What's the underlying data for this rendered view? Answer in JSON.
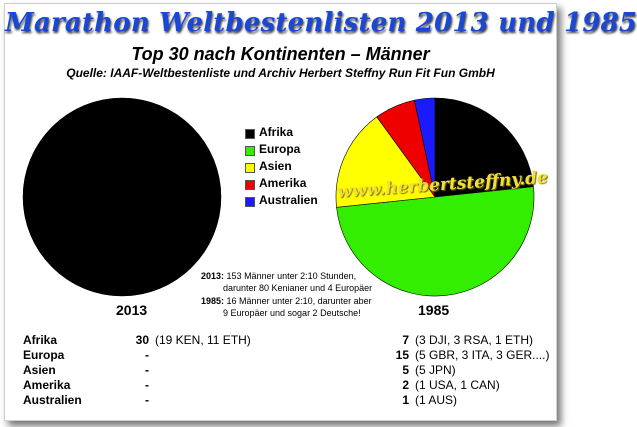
{
  "title": "Marathon Weltbestenlisten 2013 und 1985",
  "subtitle": "Top 30 nach Kontinenten – Männer",
  "source": "Quelle: IAAF-Weltbestenliste und Archiv Herbert Steffny Run Fit Fun GmbH",
  "watermark": "www.herbertsteffny.de",
  "legend": [
    {
      "label": "Afrika",
      "color": "#000000"
    },
    {
      "label": "Europa",
      "color": "#33ee00"
    },
    {
      "label": "Asien",
      "color": "#ffff00"
    },
    {
      "label": "Amerika",
      "color": "#ee0000"
    },
    {
      "label": "Australien",
      "color": "#1a1aff"
    }
  ],
  "notes": {
    "y2013": "2013:",
    "text2013_1": "153 Männer unter 2:10 Stunden,",
    "text2013_2": "darunter 80 Kenianer und 4 Europäer",
    "y1985": "1985:",
    "text1985_1": "16 Männer unter 2:10, darunter aber",
    "text1985_2": "9 Europäer und sogar 2 Deutsche!"
  },
  "chart_data": [
    {
      "type": "pie",
      "title": "2013",
      "categories": [
        "Afrika",
        "Europa",
        "Asien",
        "Amerika",
        "Australien"
      ],
      "values": [
        30,
        0,
        0,
        0,
        0
      ]
    },
    {
      "type": "pie",
      "title": "1985",
      "categories": [
        "Afrika",
        "Europa",
        "Asien",
        "Amerika",
        "Australien"
      ],
      "values": [
        7,
        15,
        5,
        2,
        1
      ]
    }
  ],
  "table": {
    "rows": [
      {
        "continent": "Afrika",
        "n2013": "30",
        "d2013": "(19 KEN, 11 ETH)",
        "n1985": "7",
        "d1985": "(3 DJI, 3 RSA, 1 ETH)"
      },
      {
        "continent": "Europa",
        "n2013": "-",
        "d2013": "",
        "n1985": "15",
        "d1985": "(5 GBR, 3 ITA, 3 GER....)"
      },
      {
        "continent": "Asien",
        "n2013": "-",
        "d2013": "",
        "n1985": "5",
        "d1985": "(5 JPN)"
      },
      {
        "continent": "Amerika",
        "n2013": "-",
        "d2013": "",
        "n1985": "2",
        "d1985": "(1 USA, 1 CAN)"
      },
      {
        "continent": "Australien",
        "n2013": "-",
        "d2013": "",
        "n1985": "1",
        "d1985": "(1 AUS)"
      }
    ]
  }
}
